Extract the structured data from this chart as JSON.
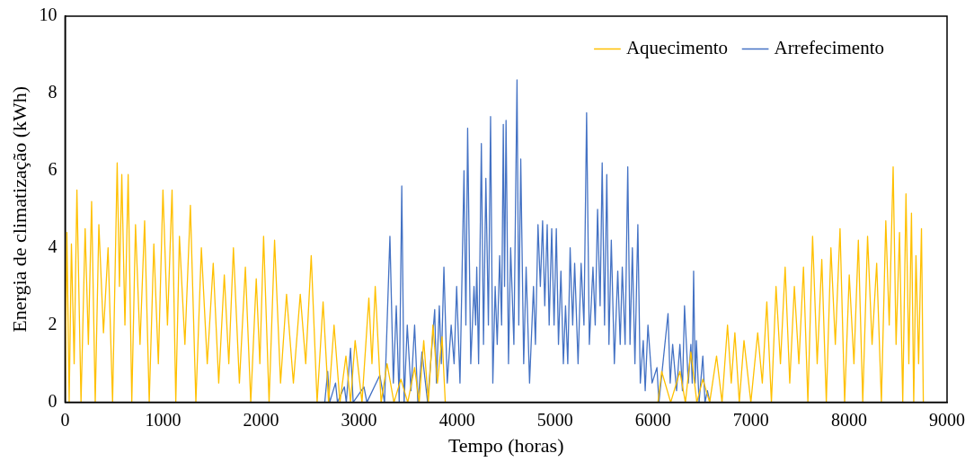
{
  "chart_data": {
    "type": "line",
    "xlabel": "Tempo (horas)",
    "ylabel": "Energia de climatização (kWh)",
    "xlim": [
      0,
      9000
    ],
    "xticks": [
      0,
      1000,
      2000,
      3000,
      4000,
      5000,
      6000,
      7000,
      8000,
      9000
    ],
    "ylim": [
      0,
      10
    ],
    "yticks": [
      0,
      2,
      4,
      6,
      8,
      10
    ],
    "grid": false,
    "legend": "top right",
    "marker": "none",
    "line_style": "solid",
    "series": [
      {
        "name": "Aquecimento",
        "color": "#ffc000",
        "x": [
          0,
          19,
          42,
          65,
          93,
          121,
          163,
          205,
          238,
          271,
          308,
          345,
          392,
          439,
          485,
          532,
          555,
          579,
          611,
          644,
          681,
          719,
          765,
          812,
          859,
          906,
          952,
          999,
          1045,
          1092,
          1130,
          1167,
          1223,
          1279,
          1335,
          1391,
          1451,
          1512,
          1568,
          1625,
          1671,
          1718,
          1779,
          1840,
          1895,
          1951,
          1988,
          2026,
          2082,
          2138,
          2199,
          2260,
          2330,
          2400,
          2456,
          2512,
          2572,
          2633,
          2689,
          2745,
          2805,
          2866,
          2913,
          2960,
          3030,
          3100,
          3132,
          3165,
          3225,
          3286,
          3356,
          3427,
          3497,
          3567,
          3613,
          3660,
          3707,
          3754,
          3800,
          3847,
          3880,
          6050,
          6088,
          6180,
          6274,
          6330,
          6386,
          6447,
          6508,
          6578,
          6648,
          6704,
          6760,
          6798,
          6835,
          6880,
          6928,
          6998,
          7068,
          7115,
          7161,
          7208,
          7255,
          7300,
          7348,
          7395,
          7442,
          7488,
          7535,
          7580,
          7628,
          7675,
          7722,
          7768,
          7815,
          7860,
          7908,
          7955,
          8002,
          8050,
          8095,
          8140,
          8189,
          8235,
          8282,
          8330,
          8375,
          8410,
          8450,
          8480,
          8515,
          8548,
          8581,
          8610,
          8637,
          8660,
          8683,
          8710,
          8739,
          8758
        ],
        "values": [
          0,
          4.4,
          0,
          4.1,
          1.0,
          5.5,
          0,
          4.5,
          1.5,
          5.2,
          0,
          4.6,
          1.8,
          4.0,
          0,
          6.2,
          3.0,
          5.9,
          2.0,
          5.9,
          0,
          4.6,
          1.5,
          4.7,
          0,
          4.1,
          1.0,
          5.5,
          2.0,
          5.5,
          0,
          4.3,
          1.5,
          5.1,
          0,
          4.0,
          1.0,
          3.6,
          0.5,
          3.3,
          1.0,
          4.0,
          0.5,
          3.5,
          0,
          3.2,
          1.0,
          4.3,
          0,
          4.2,
          0.5,
          2.8,
          0.5,
          2.8,
          1.0,
          3.8,
          0,
          2.6,
          0,
          2.0,
          0,
          1.2,
          0,
          1.6,
          0,
          2.7,
          1.0,
          3.0,
          0,
          1.0,
          0,
          0.6,
          0,
          0.9,
          0,
          1.6,
          0,
          2.0,
          0.5,
          1.7,
          0,
          0,
          0.8,
          0,
          0.8,
          0,
          1.3,
          0,
          0.6,
          0,
          1.2,
          0,
          2.0,
          0.5,
          1.8,
          0,
          1.6,
          0,
          1.8,
          0.5,
          2.6,
          0,
          3.0,
          1.0,
          3.5,
          0.5,
          3.0,
          1.0,
          3.5,
          0,
          4.3,
          1.0,
          3.7,
          0,
          4.0,
          1.5,
          4.5,
          0,
          3.3,
          1.0,
          4.2,
          0,
          4.3,
          1.5,
          3.6,
          0,
          4.7,
          2.0,
          6.1,
          1.5,
          4.4,
          0,
          5.4,
          1.0,
          4.9,
          0,
          3.8,
          1.0,
          4.5,
          0
        ]
      },
      {
        "name": "Arrefecimento",
        "color": "#4472c4",
        "x": [
          0,
          2650,
          2680,
          2700,
          2760,
          2780,
          2850,
          2870,
          2913,
          2940,
          3050,
          3080,
          3212,
          3260,
          3315,
          3350,
          3380,
          3410,
          3436,
          3460,
          3492,
          3530,
          3567,
          3600,
          3642,
          3700,
          3772,
          3790,
          3819,
          3840,
          3866,
          3900,
          3940,
          3970,
          3996,
          4030,
          4071,
          4090,
          4108,
          4140,
          4173,
          4190,
          4201,
          4220,
          4248,
          4270,
          4294,
          4320,
          4342,
          4365,
          4389,
          4410,
          4435,
          4455,
          4472,
          4485,
          4500,
          4525,
          4547,
          4580,
          4612,
          4630,
          4650,
          4680,
          4705,
          4740,
          4780,
          4800,
          4826,
          4850,
          4873,
          4895,
          4920,
          4940,
          4966,
          4990,
          5013,
          5035,
          5060,
          5085,
          5107,
          5130,
          5154,
          5180,
          5200,
          5235,
          5266,
          5295,
          5322,
          5350,
          5387,
          5410,
          5434,
          5460,
          5481,
          5505,
          5528,
          5550,
          5574,
          5605,
          5640,
          5665,
          5686,
          5715,
          5742,
          5765,
          5789,
          5815,
          5845,
          5870,
          5900,
          5920,
          5948,
          5990,
          6040,
          6060,
          6153,
          6175,
          6200,
          6240,
          6274,
          6300,
          6321,
          6360,
          6386,
          6400,
          6414,
          6430,
          6442,
          6470,
          6508,
          6530,
          6555,
          6580,
          8760
        ],
        "values": [
          0,
          0,
          0.8,
          0,
          0.5,
          0,
          0.4,
          0,
          1.4,
          0,
          0.4,
          0,
          0.7,
          0,
          4.3,
          0.5,
          2.5,
          0,
          5.6,
          0,
          2.0,
          0.3,
          2.0,
          0,
          1.3,
          0,
          2.4,
          0.5,
          2.5,
          1.0,
          3.5,
          0.5,
          2.0,
          1.0,
          3.0,
          0.5,
          6.0,
          2.0,
          7.1,
          1.0,
          3.0,
          2.0,
          3.5,
          1.0,
          6.7,
          1.5,
          5.8,
          2.0,
          7.4,
          0.5,
          3.0,
          1.5,
          3.8,
          2.0,
          7.2,
          3.0,
          7.3,
          1.0,
          4.0,
          1.5,
          8.35,
          2.0,
          6.3,
          1.0,
          3.5,
          0.5,
          3.0,
          1.5,
          4.6,
          3.0,
          4.7,
          2.5,
          4.6,
          2.0,
          4.5,
          2.0,
          4.5,
          1.5,
          3.4,
          1.0,
          2.5,
          1.0,
          4.0,
          2.0,
          3.6,
          1.0,
          3.6,
          2.0,
          7.5,
          1.5,
          3.5,
          2.0,
          5.0,
          2.5,
          6.2,
          2.0,
          5.9,
          1.5,
          4.2,
          1.0,
          3.4,
          1.5,
          3.5,
          1.5,
          6.1,
          1.5,
          4.0,
          1.0,
          4.6,
          0.5,
          1.6,
          0.3,
          2.0,
          0.5,
          0.9,
          0,
          2.3,
          0.5,
          1.5,
          0.3,
          1.5,
          0.3,
          2.5,
          0.5,
          1.5,
          0.5,
          3.4,
          0.5,
          1.6,
          0,
          1.2,
          0,
          0.3,
          0,
          0
        ]
      }
    ]
  }
}
